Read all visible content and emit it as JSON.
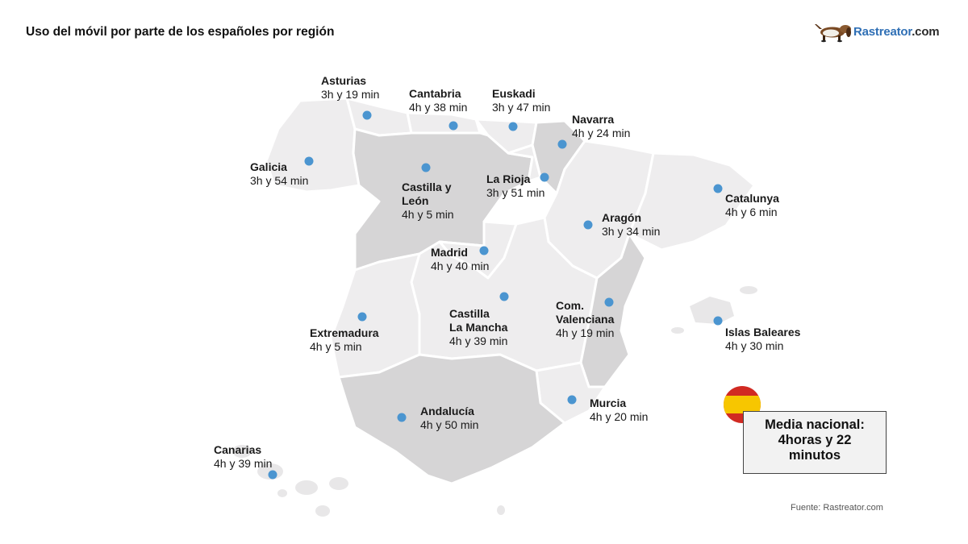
{
  "title": "Uso del móvil por parte de los españoles por región",
  "logo": {
    "name": "Rastreator",
    "suffix": ".com",
    "brand_color": "#2f6fb5"
  },
  "source": "Fuente: Rastreator.com",
  "national_average": {
    "line1": "Media nacional:",
    "line2": "4horas y 22",
    "line3": "minutos"
  },
  "colors": {
    "dot": "#4b95d0",
    "region_light": "#eeedee",
    "region_dark": "#d6d5d6",
    "flag_red": "#d12a22",
    "flag_yellow": "#f7c600"
  },
  "regions": {
    "asturias": {
      "name": "Asturias",
      "value": "3h y 19 min"
    },
    "cantabria": {
      "name": "Cantabria",
      "value": "4h y 38 min"
    },
    "euskadi": {
      "name": "Euskadi",
      "value": "3h y 47 min"
    },
    "navarra": {
      "name": "Navarra",
      "value": "4h y 24 min"
    },
    "galicia": {
      "name": "Galicia",
      "value": "3h y 54 min"
    },
    "castilla_leon": {
      "name1": "Castilla y",
      "name2": "León",
      "value": "4h y 5 min"
    },
    "la_rioja": {
      "name": "La Rioja",
      "value": "3h y 51 min"
    },
    "catalunya": {
      "name": "Catalunya",
      "value": "4h y 6 min"
    },
    "aragon": {
      "name": "Aragón",
      "value": "3h y 34 min"
    },
    "madrid": {
      "name": "Madrid",
      "value": "4h y 40 min"
    },
    "castilla_la_mancha": {
      "name1": "Castilla",
      "name2": "La Mancha",
      "value": "4h y 39 min"
    },
    "com_valenciana": {
      "name1": "Com.",
      "name2": "Valenciana",
      "value": "4h y 19 min"
    },
    "extremadura": {
      "name": "Extremadura",
      "value": "4h y 5 min"
    },
    "islas_baleares": {
      "name": "Islas Baleares",
      "value": "4h y 30 min"
    },
    "andalucia": {
      "name": "Andalucía",
      "value": "4h y 50 min"
    },
    "murcia": {
      "name": "Murcia",
      "value": "4h y 20 min"
    },
    "canarias": {
      "name": "Canarias",
      "value": "4h y 39 min"
    }
  }
}
